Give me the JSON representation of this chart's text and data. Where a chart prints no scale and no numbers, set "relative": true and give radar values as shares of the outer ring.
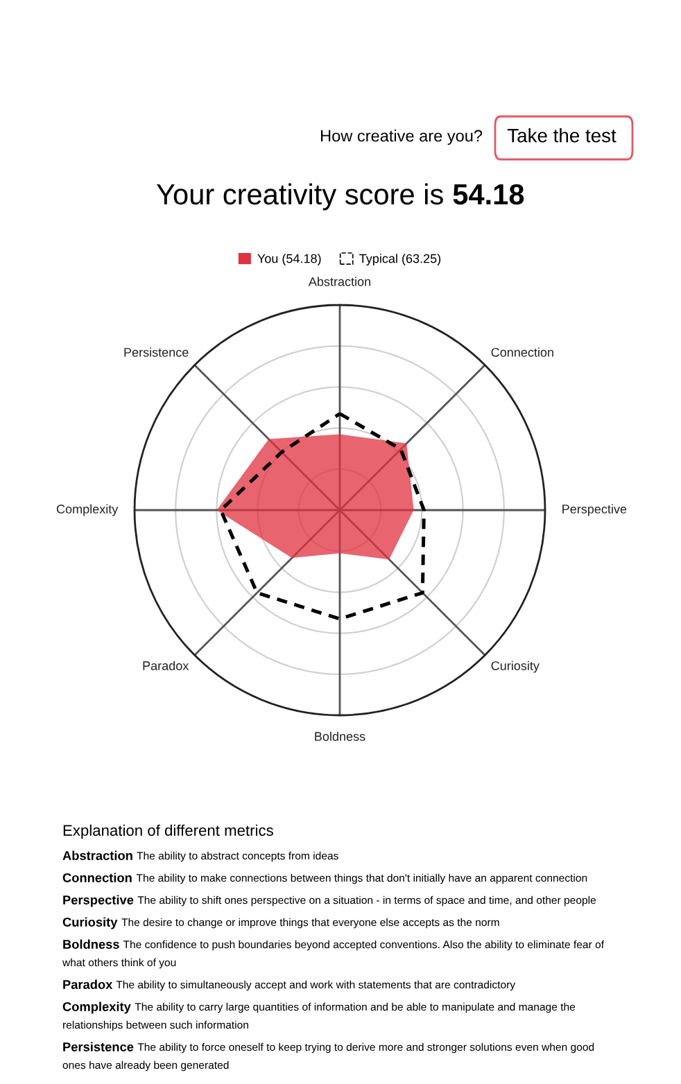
{
  "chart_data": {
    "type": "radar",
    "title": "Your creativity score is 54.18",
    "relative": true,
    "grid": true,
    "legend": "top",
    "line_style": "solid",
    "categories": [
      "Abstraction",
      "Connection",
      "Perspective",
      "Curiosity",
      "Boldness",
      "Paradox",
      "Complexity",
      "Persistence"
    ],
    "series": [
      {
        "name": "You (54.18)",
        "color": "#e0323f",
        "values": [
          0.37,
          0.46,
          0.36,
          0.34,
          0.21,
          0.33,
          0.6,
          0.49
        ]
      },
      {
        "name": "Typical (63.25)",
        "color": "#000000",
        "line_style": "dashed",
        "values": [
          0.47,
          0.42,
          0.41,
          0.57,
          0.53,
          0.57,
          0.58,
          0.4
        ]
      }
    ],
    "annotations": [
      "How creative are you?",
      "Take the test",
      "Explanation of different metrics",
      "Abstraction The ability to abstract concepts from ideas",
      "Connection The ability to make connections between things that don't initially have an apparent connection",
      "Perspective The ability to shift ones perspective on a situation - in terms of space and time, and other people",
      "Curiosity The desire to change or improve things that everyone else accepts as the norm",
      "Boldness The confidence to push boundaries beyond accepted conventions. Also the ability to eliminate fear of what others think of you",
      "Paradox The ability to simultaneously accept and work with statements that are contradictory",
      "Complexity The ability to carry large quantities of information and be able to manipulate and manage the relationships between such information",
      "Persistence The ability to force oneself to keep trying to derive more and stronger solutions even when good ones have already been generated"
    ]
  }
}
